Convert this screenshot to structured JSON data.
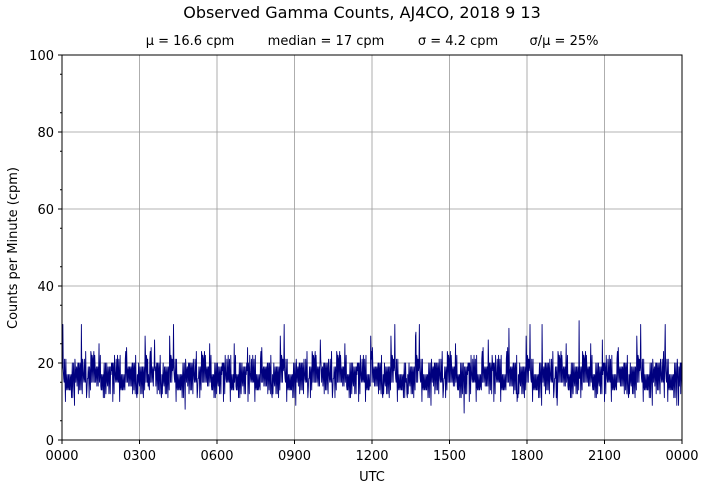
{
  "chart_data": {
    "type": "line",
    "title": "Observed Gamma Counts, AJ4CO, 2018 9 13",
    "subtitle": {
      "mean": "μ = 16.6 cpm",
      "median": "median = 17 cpm",
      "sigma": "σ = 4.2 cpm",
      "ratio": "σ/μ = 25%"
    },
    "xlabel": "UTC",
    "ylabel": "Counts per Minute (cpm)",
    "ylim": [
      0,
      100
    ],
    "xlim": [
      "0000",
      "2400"
    ],
    "x_tick_labels": [
      "0000",
      "0300",
      "0600",
      "0900",
      "1200",
      "1500",
      "1800",
      "2100",
      "0000"
    ],
    "y_tick_labels": [
      "0",
      "20",
      "40",
      "60",
      "80",
      "100"
    ],
    "grid": true,
    "series": [
      {
        "color": "#00007f",
        "x_unit": "minute of day (UTC)",
        "y_unit": "cpm",
        "x_start": 0,
        "x_step": 1,
        "values": [
          18,
          14,
          25,
          9,
          16,
          20,
          13,
          19,
          17,
          15,
          21,
          12,
          18,
          16,
          30,
          14,
          17,
          19,
          11,
          20,
          16,
          18,
          13,
          22,
          15,
          17,
          10,
          19,
          16,
          21,
          14,
          18,
          12,
          20,
          17,
          15,
          23,
          13,
          19,
          16,
          18,
          11,
          21,
          15,
          17,
          14,
          20,
          12,
          19,
          16,
          24,
          13,
          18,
          15,
          22,
          17,
          10,
          19,
          16,
          20,
          14,
          18,
          13,
          21,
          15,
          17,
          12,
          19,
          16,
          23,
          14,
          18,
          11,
          20,
          17,
          15,
          22,
          13,
          19,
          16,
          18,
          12,
          21,
          15,
          17,
          14,
          20,
          13,
          19,
          16,
          22,
          14,
          18,
          11,
          20,
          17,
          15,
          21,
          13,
          19,
          16,
          18,
          12,
          22,
          15,
          17,
          14,
          20,
          13,
          19,
          16,
          21,
          14,
          18,
          12,
          20,
          17,
          15,
          23,
          13,
          19,
          16,
          18,
          11,
          21,
          15,
          17,
          14,
          20,
          12,
          19,
          16,
          22,
          13,
          18,
          15,
          21,
          17,
          10,
          19,
          16,
          20,
          14,
          18,
          13,
          22,
          15,
          17,
          12,
          19,
          16,
          27,
          14,
          18,
          11,
          20,
          17,
          15,
          22,
          13,
          19,
          16,
          18,
          12,
          21,
          15,
          17,
          14,
          20,
          13,
          19,
          16,
          22,
          14,
          18,
          11,
          20,
          17,
          15,
          21,
          13,
          19,
          16,
          18,
          12,
          23,
          15,
          17,
          14,
          20,
          12,
          19,
          16,
          21,
          13,
          18,
          15,
          22,
          17,
          11
        ]
      }
    ],
    "peaks": [
      {
        "x": 45,
        "y": 30
      },
      {
        "x": 215,
        "y": 26
      },
      {
        "x": 286,
        "y": 8
      },
      {
        "x": 431,
        "y": 24
      },
      {
        "x": 600,
        "y": 26
      },
      {
        "x": 717,
        "y": 27
      },
      {
        "x": 822,
        "y": 28
      },
      {
        "x": 934,
        "y": 7
      },
      {
        "x": 990,
        "y": 26
      },
      {
        "x": 1038,
        "y": 29
      },
      {
        "x": 1057,
        "y": 10
      },
      {
        "x": 1115,
        "y": 30
      },
      {
        "x": 1150,
        "y": 9
      },
      {
        "x": 1201,
        "y": 31
      },
      {
        "x": 1255,
        "y": 26
      },
      {
        "x": 1400,
        "y": 23
      },
      {
        "x": 1432,
        "y": 9
      },
      {
        "x": 1500,
        "y": 33
      },
      {
        "x": 1580,
        "y": 5
      },
      {
        "x": 1640,
        "y": 24
      },
      {
        "x": 1750,
        "y": 26
      },
      {
        "x": 1813,
        "y": 8
      },
      {
        "x": 1860,
        "y": 25
      },
      {
        "x": 2052,
        "y": 26
      },
      {
        "x": 2100,
        "y": 27
      },
      {
        "x": 2170,
        "y": 29
      },
      {
        "x": 2262,
        "y": 7
      },
      {
        "x": 2315,
        "y": 5
      },
      {
        "x": 2368,
        "y": 28
      },
      {
        "x": 2395,
        "y": 9
      }
    ]
  }
}
